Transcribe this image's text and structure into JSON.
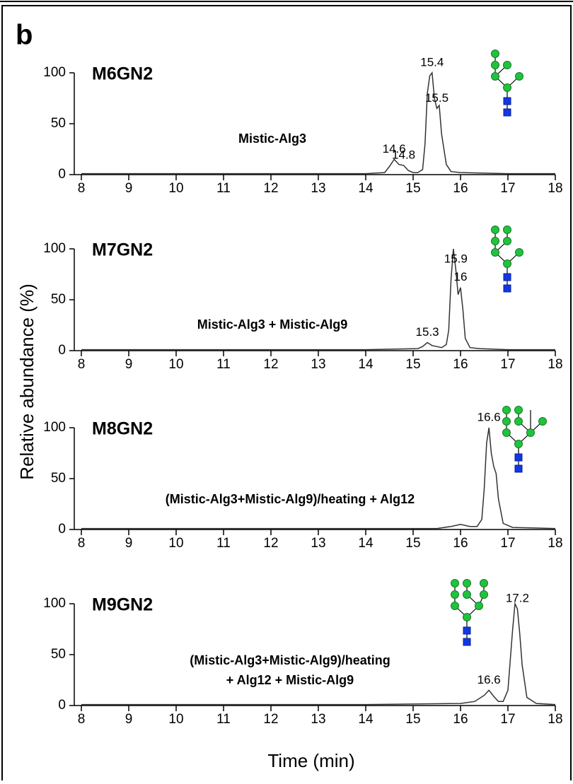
{
  "panel_label": "b",
  "ylabel": "Relative abundance (%)",
  "xlabel": "Time (min)",
  "chart_data": [
    {
      "type": "line",
      "title": "M6GN2",
      "annotation": [
        "Mistic-Alg3"
      ],
      "color": "#333333",
      "x": [
        8,
        10,
        12,
        14,
        14.4,
        14.5,
        14.6,
        14.7,
        14.8,
        14.9,
        15.0,
        15.1,
        15.2,
        15.25,
        15.3,
        15.35,
        15.4,
        15.45,
        15.5,
        15.55,
        15.6,
        15.7,
        15.8,
        16,
        17,
        18
      ],
      "values": [
        1,
        1,
        1,
        1,
        2,
        8,
        15,
        10,
        9,
        4,
        2,
        2,
        5,
        30,
        80,
        97,
        100,
        75,
        65,
        68,
        40,
        10,
        3,
        2,
        1,
        1
      ],
      "peak_labels": [
        14.6,
        14.8,
        15.4,
        15.5
      ],
      "xlim": [
        8,
        18
      ],
      "ylim": [
        0,
        100
      ],
      "xticks": [
        8,
        9,
        10,
        11,
        12,
        13,
        14,
        15,
        16,
        17,
        18
      ],
      "yticks": [
        0,
        50,
        100
      ]
    },
    {
      "type": "line",
      "title": "M7GN2",
      "annotation": [
        "Mistic-Alg3 + Mistic-Alg9"
      ],
      "color": "#333333",
      "x": [
        8,
        10,
        12,
        14,
        15.1,
        15.2,
        15.3,
        15.4,
        15.5,
        15.6,
        15.7,
        15.75,
        15.8,
        15.85,
        15.9,
        15.95,
        16.0,
        16.05,
        16.1,
        16.2,
        16.4,
        17,
        18
      ],
      "values": [
        1,
        1,
        1,
        1,
        2,
        4,
        8,
        5,
        4,
        3,
        6,
        20,
        70,
        100,
        80,
        55,
        62,
        40,
        12,
        3,
        2,
        1,
        1
      ],
      "peak_labels": [
        15.3,
        15.9,
        16.0
      ],
      "xlim": [
        8,
        18
      ],
      "ylim": [
        0,
        100
      ],
      "xticks": [
        8,
        9,
        10,
        11,
        12,
        13,
        14,
        15,
        16,
        17,
        18
      ],
      "yticks": [
        0,
        50,
        100
      ]
    },
    {
      "type": "line",
      "title": "M8GN2",
      "annotation": [
        "(Mistic-Alg3+Mistic-Alg9)/heating + Alg12"
      ],
      "color": "#333333",
      "x": [
        8,
        10,
        12,
        14,
        15.5,
        15.8,
        16.0,
        16.2,
        16.35,
        16.45,
        16.5,
        16.55,
        16.6,
        16.65,
        16.7,
        16.75,
        16.8,
        16.9,
        17.1,
        18
      ],
      "values": [
        1,
        1,
        1,
        1,
        1,
        3,
        5,
        3,
        3,
        10,
        40,
        85,
        100,
        75,
        62,
        55,
        30,
        6,
        2,
        1
      ],
      "peak_labels": [
        16.6
      ],
      "xlim": [
        8,
        18
      ],
      "ylim": [
        0,
        100
      ],
      "xticks": [
        8,
        9,
        10,
        11,
        12,
        13,
        14,
        15,
        16,
        17,
        18
      ],
      "yticks": [
        0,
        50,
        100
      ]
    },
    {
      "type": "line",
      "title": "M9GN2",
      "annotation": [
        "(Mistic-Alg3+Mistic-Alg9)/heating",
        "+ Alg12 + Mistic-Alg9"
      ],
      "color": "#333333",
      "x": [
        8,
        10,
        12,
        14,
        16.0,
        16.3,
        16.5,
        16.6,
        16.7,
        16.8,
        16.9,
        17.0,
        17.1,
        17.15,
        17.2,
        17.25,
        17.3,
        17.4,
        17.6,
        18
      ],
      "values": [
        1,
        1,
        1,
        1,
        2,
        4,
        10,
        15,
        9,
        4,
        4,
        15,
        75,
        100,
        95,
        70,
        40,
        8,
        2,
        1
      ],
      "peak_labels": [
        16.6,
        17.2
      ],
      "xlim": [
        8,
        18
      ],
      "ylim": [
        0,
        100
      ],
      "xticks": [
        8,
        9,
        10,
        11,
        12,
        13,
        14,
        15,
        16,
        17,
        18
      ],
      "yticks": [
        0,
        50,
        100
      ]
    }
  ]
}
